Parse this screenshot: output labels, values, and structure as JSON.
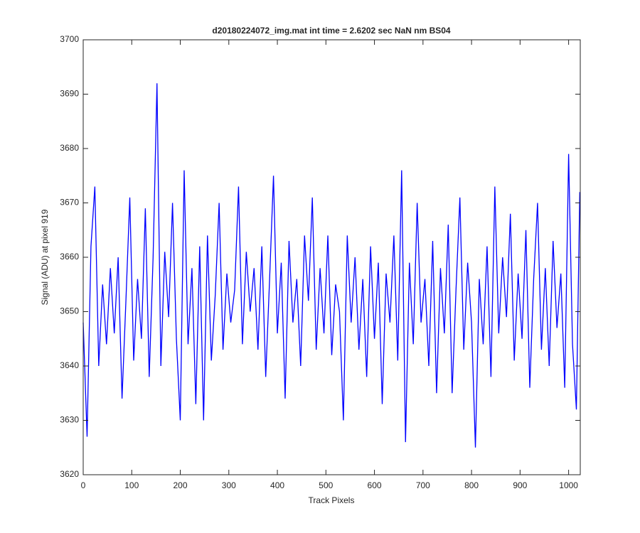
{
  "chart_data": {
    "type": "line",
    "title": "d20180224072_img.mat int time = 2.6202 sec  NaN nm BS04",
    "x_label": "Track Pixels",
    "y_label": "Signal (ADU) at pixel 919",
    "color": "#0000ff",
    "x": [
      0,
      8,
      16,
      24,
      32,
      40,
      48,
      56,
      64,
      72,
      80,
      88,
      96,
      104,
      112,
      120,
      128,
      136,
      144,
      152,
      160,
      168,
      176,
      184,
      192,
      200,
      208,
      216,
      224,
      232,
      240,
      248,
      256,
      264,
      272,
      280,
      288,
      296,
      304,
      312,
      320,
      328,
      336,
      344,
      352,
      360,
      368,
      376,
      384,
      392,
      400,
      408,
      416,
      424,
      432,
      440,
      448,
      456,
      464,
      472,
      480,
      488,
      496,
      504,
      512,
      520,
      528,
      536,
      544,
      552,
      560,
      568,
      576,
      584,
      592,
      600,
      608,
      616,
      624,
      632,
      640,
      648,
      656,
      664,
      672,
      680,
      688,
      696,
      704,
      712,
      720,
      728,
      736,
      744,
      752,
      760,
      768,
      776,
      784,
      792,
      800,
      808,
      816,
      824,
      832,
      840,
      848,
      856,
      864,
      872,
      880,
      888,
      896,
      904,
      912,
      920,
      928,
      936,
      944,
      952,
      960,
      968,
      976,
      984,
      992,
      1000,
      1008,
      1016,
      1023
    ],
    "values": [
      3648,
      3627,
      3662,
      3673,
      3640,
      3655,
      3644,
      3658,
      3646,
      3660,
      3634,
      3652,
      3671,
      3641,
      3656,
      3645,
      3669,
      3638,
      3660,
      3692,
      3640,
      3661,
      3649,
      3670,
      3645,
      3630,
      3676,
      3644,
      3658,
      3633,
      3662,
      3630,
      3664,
      3641,
      3653,
      3670,
      3643,
      3657,
      3648,
      3654,
      3673,
      3644,
      3661,
      3650,
      3658,
      3643,
      3662,
      3638,
      3656,
      3675,
      3646,
      3659,
      3634,
      3663,
      3648,
      3656,
      3640,
      3664,
      3652,
      3671,
      3643,
      3658,
      3646,
      3664,
      3642,
      3655,
      3650,
      3630,
      3664,
      3648,
      3660,
      3643,
      3656,
      3638,
      3662,
      3645,
      3659,
      3633,
      3657,
      3648,
      3664,
      3641,
      3676,
      3626,
      3659,
      3644,
      3670,
      3648,
      3656,
      3640,
      3663,
      3635,
      3658,
      3646,
      3666,
      3635,
      3654,
      3671,
      3643,
      3659,
      3648,
      3625,
      3656,
      3644,
      3662,
      3638,
      3673,
      3646,
      3660,
      3649,
      3668,
      3641,
      3657,
      3645,
      3665,
      3636,
      3656,
      3670,
      3643,
      3658,
      3640,
      3663,
      3647,
      3657,
      3636,
      3679,
      3644,
      3632,
      3672
    ],
    "xlim": [
      0,
      1024
    ],
    "xticks": [
      0,
      100,
      200,
      300,
      400,
      500,
      600,
      700,
      800,
      900,
      1000
    ],
    "ylim": [
      3620,
      3700
    ],
    "yticks": [
      3620,
      3630,
      3640,
      3650,
      3660,
      3670,
      3680,
      3690,
      3700
    ]
  }
}
